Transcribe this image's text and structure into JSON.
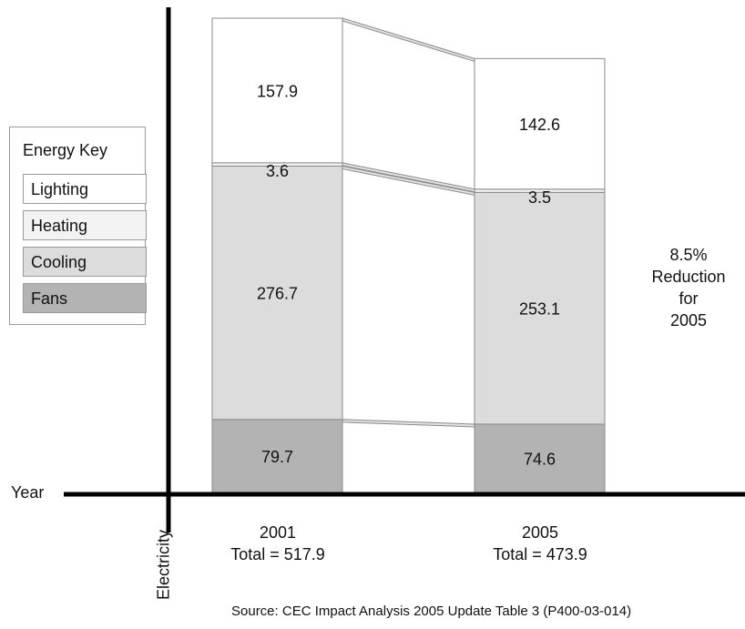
{
  "chart_data": {
    "type": "bar",
    "stacked": true,
    "categories": [
      "2001",
      "2005"
    ],
    "series": [
      {
        "name": "Fans",
        "values": [
          79.7,
          74.6
        ],
        "color": "#b3b3b3"
      },
      {
        "name": "Cooling",
        "values": [
          276.7,
          253.1
        ],
        "color": "#dcdcdc"
      },
      {
        "name": "Heating",
        "values": [
          3.6,
          3.5
        ],
        "color": "#f3f3f3"
      },
      {
        "name": "Lighting",
        "values": [
          157.9,
          142.6
        ],
        "color": "#ffffff"
      }
    ],
    "totals": [
      "Total = 517.9",
      "Total = 473.9"
    ],
    "data_labels": [
      [
        "79.7",
        "276.7",
        "3.6",
        "157.9"
      ],
      [
        "74.6",
        "253.1",
        "3.5",
        "142.6"
      ]
    ],
    "xlabel": "Year",
    "ylabel": "Electricity",
    "ylim": [
      0,
      517.9
    ],
    "legend_position": "left",
    "grid": false
  },
  "legend": {
    "title": "Energy Key",
    "items": [
      {
        "label": "Lighting",
        "color": "#ffffff"
      },
      {
        "label": "Heating",
        "color": "#f3f3f3"
      },
      {
        "label": "Cooling",
        "color": "#dcdcdc"
      },
      {
        "label": "Fans",
        "color": "#b3b3b3"
      }
    ]
  },
  "annotation": {
    "lines": [
      "8.5%",
      "Reduction",
      "for",
      "2005"
    ]
  },
  "source": "Source: CEC Impact Analysis 2005 Update Table 3 (P400-03-014)",
  "colors": {
    "axis": "#000000",
    "border": "#8a8a8a"
  }
}
